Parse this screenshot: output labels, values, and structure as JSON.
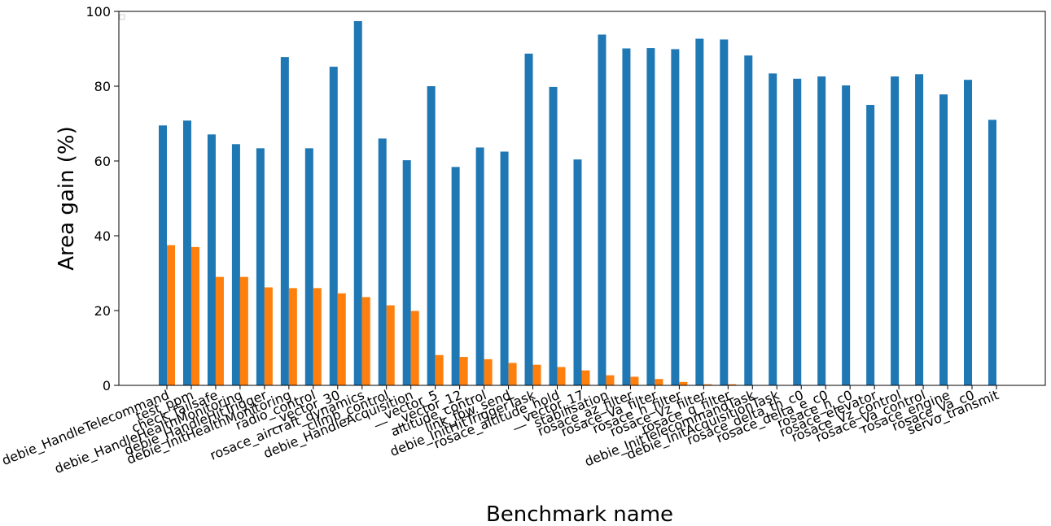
{
  "chart_data": {
    "type": "bar",
    "title": "",
    "xlabel": "Benchmark name",
    "ylabel": "Area gain (%)",
    "ylim": [
      0,
      100
    ],
    "yticks": [
      0,
      20,
      40,
      60,
      80,
      100
    ],
    "grid": false,
    "legend": "empty-top-left",
    "categories": [
      "debie_HandleTelecommand",
      "test_ppm",
      "check_failsafe",
      "debie_HandleHealthMonitoring",
      "debie_HandleHitTrigger",
      "debie_InitHealthMonitoring",
      "radio_control",
      "__vector_30",
      "rosace_aircraft_dynamics",
      "climb_control",
      "debie_HandleAcquisition",
      "__vector_5",
      "__vector_12",
      "altitude_control",
      "link_fbw_send",
      "debie_InitHitTriggerTask",
      "rosace_altitude_hold",
      "__vector_17",
      "stabilisation",
      "rosace_az_filter",
      "rosace_Va_filter",
      "rosace_h_filter",
      "rosace_Vz_filter",
      "rosace_q_filter",
      "debie_InitTelecommandTask",
      "debie_InitAcquisitionTask",
      "rosace_delta_th_c0",
      "rosace_delta_e_c0",
      "rosace_h_c0",
      "rosace_elevator",
      "rosace_Vz_control",
      "rosace_Va_control",
      "rosace_engine",
      "rosace_Va_c0",
      "servo_transmit"
    ],
    "series": [
      {
        "color": "#1f77b4",
        "values": [
          69.5,
          70.8,
          67.1,
          64.5,
          63.4,
          87.8,
          63.4,
          85.2,
          97.4,
          66.0,
          60.2,
          80.0,
          58.4,
          63.6,
          62.5,
          88.7,
          79.8,
          60.4,
          93.8,
          90.1,
          90.2,
          89.9,
          92.7,
          92.5,
          88.2,
          83.4,
          82.0,
          82.6,
          80.2,
          75.0,
          82.6,
          83.2,
          77.8,
          81.7,
          71.0
        ]
      },
      {
        "color": "#ff7f0e",
        "values": [
          37.5,
          37.0,
          29.0,
          29.0,
          26.2,
          26.0,
          26.0,
          24.6,
          23.6,
          21.4,
          19.9,
          8.1,
          7.6,
          7.0,
          6.0,
          5.5,
          4.9,
          4.0,
          2.7,
          2.3,
          1.7,
          0.9,
          0.3,
          0.3,
          0.0,
          0.0,
          0.0,
          0.0,
          0.0,
          0.0,
          0.0,
          0.0,
          0.0,
          0.0,
          0.0
        ]
      }
    ]
  }
}
